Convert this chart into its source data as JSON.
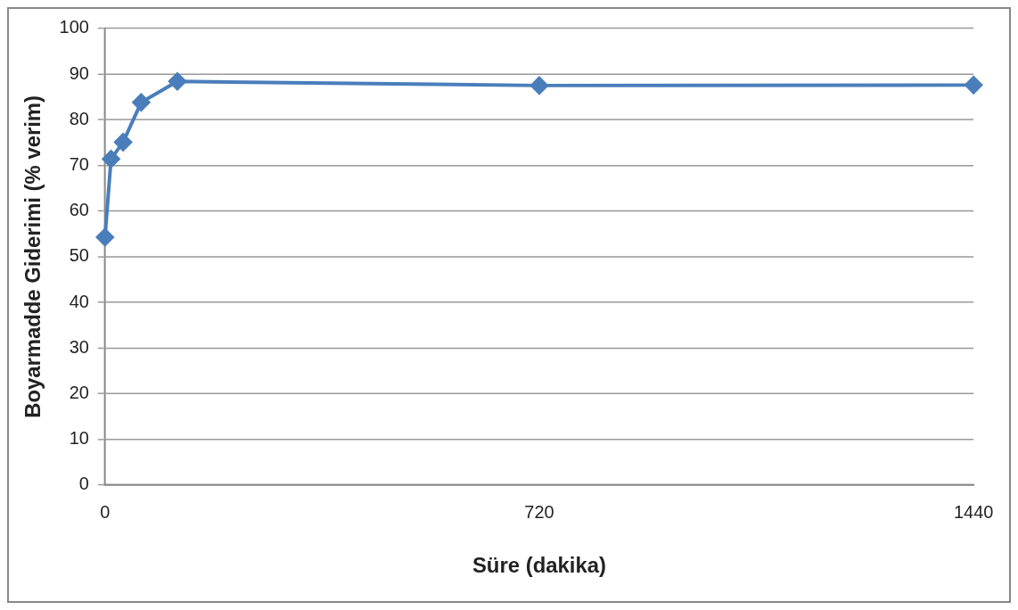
{
  "chart_data": {
    "type": "line",
    "xlabel": "Süre (dakika)",
    "ylabel": "Boyarmadde Giderimi (% verim)",
    "x": [
      0,
      10,
      30,
      60,
      120,
      720,
      1440
    ],
    "series": [
      {
        "color": "#4a7ebb",
        "values": [
          54.3,
          71.4,
          75.1,
          83.8,
          88.4,
          87.5,
          87.6
        ]
      }
    ],
    "xlim": [
      0,
      1440
    ],
    "xticks": [
      0,
      720,
      1440
    ],
    "ylim": [
      0,
      100
    ],
    "yticks": [
      0,
      10,
      20,
      30,
      40,
      50,
      60,
      70,
      80,
      90,
      100
    ],
    "grid": "y",
    "legend": false,
    "marker": "diamond",
    "line_style": "solid"
  }
}
